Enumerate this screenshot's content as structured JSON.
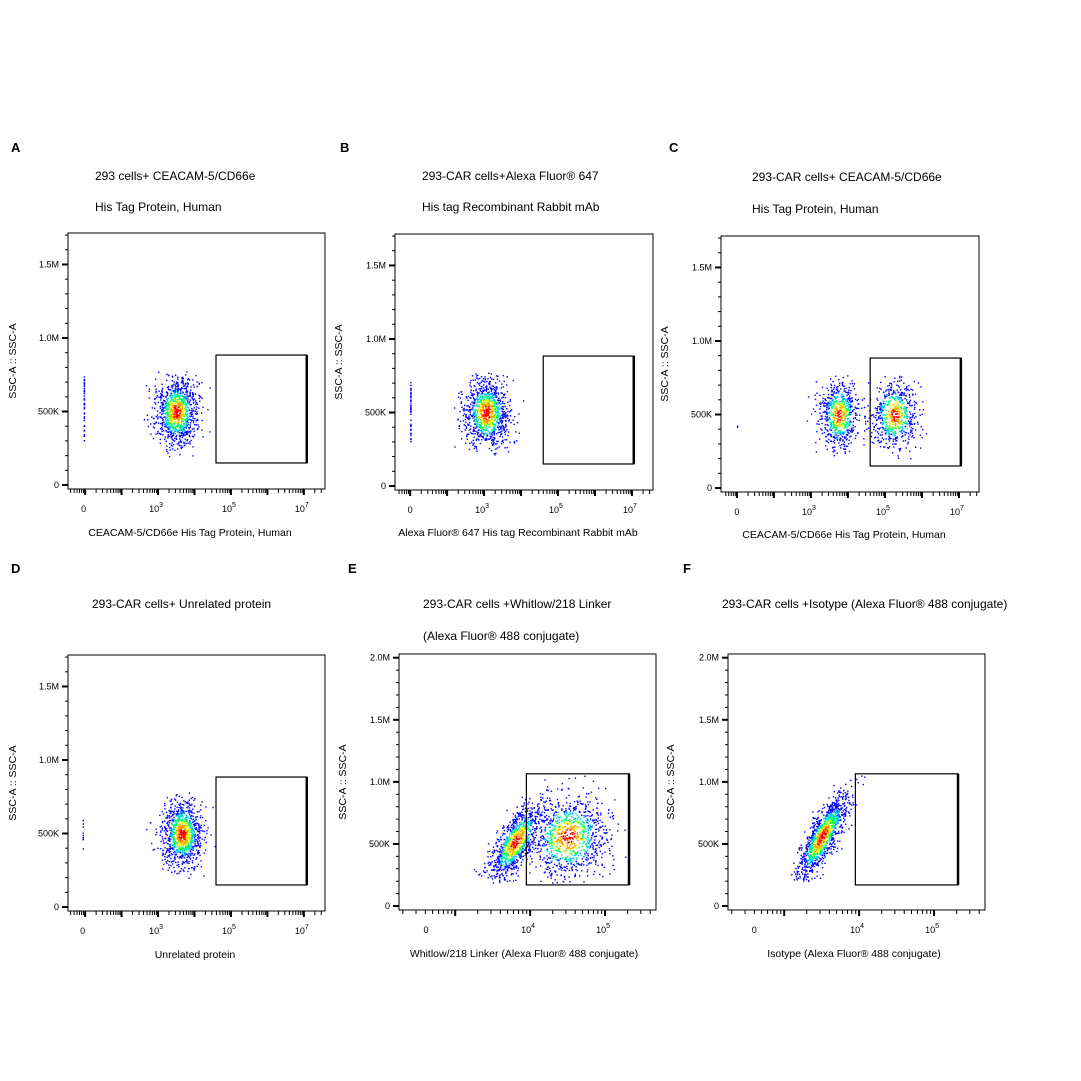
{
  "chart_data": [
    {
      "panel": "A",
      "type": "scatter",
      "title_lines": [
        "293 cells+ CEACAM-5/CD66e",
        "His Tag Protein, Human"
      ],
      "xlabel": "CEACAM-5/CD66e His Tag Protein, Human",
      "ylabel": "SSC-A :: SSC-A",
      "xlim_log10": [
        0.53,
        7.58
      ],
      "ylim": [
        -27000,
        1714000
      ],
      "x_ticks": [
        {
          "label": "0",
          "log10": 0.96
        },
        {
          "base": "10",
          "exp": "3",
          "log10": 3
        },
        {
          "base": "10",
          "exp": "5",
          "log10": 5
        },
        {
          "base": "10",
          "exp": "7",
          "log10": 7
        }
      ],
      "y_ticks": [
        {
          "label": "0",
          "value": 0
        },
        {
          "label": "500K",
          "value": 500000
        },
        {
          "label": "1.0M",
          "value": 1000000
        },
        {
          "label": "1.5M",
          "value": 1500000
        }
      ],
      "gate": {
        "x_log10": [
          4.59,
          7.08
        ],
        "y": [
          150000,
          884000
        ]
      },
      "y_clip": [
        220000,
        770000
      ],
      "populations": [
        {
          "x_log10": 3.5,
          "x_sd": 0.28,
          "y": 500000,
          "y_sd": 115000,
          "corr": 0,
          "n": 1100
        }
      ],
      "zero_column": {
        "y": [
          300000,
          740000
        ],
        "n": 45
      }
    },
    {
      "panel": "B",
      "type": "scatter",
      "title_lines": [
        "293-CAR cells+Alexa Fluor® 647",
        "His tag Recombinant Rabbit mAb"
      ],
      "xlabel": "Alexa Fluor® 647  His tag Recombinant Rabbit mAb",
      "ylabel": "SSC-A :: SSC-A",
      "xlim_log10": [
        0.59,
        7.57
      ],
      "ylim": [
        -27000,
        1714000
      ],
      "x_ticks": [
        {
          "label": "0",
          "log10": 1.0
        },
        {
          "base": "10",
          "exp": "3",
          "log10": 3
        },
        {
          "base": "10",
          "exp": "5",
          "log10": 5
        },
        {
          "base": "10",
          "exp": "7",
          "log10": 7
        }
      ],
      "y_ticks": [
        {
          "label": "0",
          "value": 0
        },
        {
          "label": "500K",
          "value": 500000
        },
        {
          "label": "1.0M",
          "value": 1000000
        },
        {
          "label": "1.5M",
          "value": 1500000
        }
      ],
      "gate": {
        "x_log10": [
          4.6,
          7.05
        ],
        "y": [
          150000,
          884000
        ]
      },
      "y_clip": [
        220000,
        770000
      ],
      "populations": [
        {
          "x_log10": 3.05,
          "x_sd": 0.3,
          "y": 500000,
          "y_sd": 115000,
          "corr": 0,
          "n": 1100
        }
      ],
      "zero_column": {
        "y": [
          300000,
          740000
        ],
        "n": 45
      }
    },
    {
      "panel": "C",
      "type": "scatter",
      "title_lines": [
        "293-CAR cells+ CEACAM-5/CD66e",
        "His Tag Protein, Human"
      ],
      "xlabel": "CEACAM-5/CD66e His Tag Protein, Human",
      "ylabel": "SSC-A :: SSC-A",
      "xlim_log10": [
        0.57,
        7.54
      ],
      "ylim": [
        -27000,
        1714000
      ],
      "x_ticks": [
        {
          "label": "0",
          "log10": 1.0
        },
        {
          "base": "10",
          "exp": "3",
          "log10": 3
        },
        {
          "base": "10",
          "exp": "5",
          "log10": 5
        },
        {
          "base": "10",
          "exp": "7",
          "log10": 7
        }
      ],
      "y_ticks": [
        {
          "label": "0",
          "value": 0
        },
        {
          "label": "500K",
          "value": 500000
        },
        {
          "label": "1.0M",
          "value": 1000000
        },
        {
          "label": "1.5M",
          "value": 1500000
        }
      ],
      "gate": {
        "x_log10": [
          4.6,
          7.05
        ],
        "y": [
          150000,
          884000
        ]
      },
      "y_clip": [
        220000,
        770000
      ],
      "populations": [
        {
          "x_log10": 3.75,
          "x_sd": 0.25,
          "y": 500000,
          "y_sd": 115000,
          "corr": 0,
          "n": 700
        },
        {
          "x_log10": 5.25,
          "x_sd": 0.3,
          "y": 500000,
          "y_sd": 115000,
          "corr": 0,
          "n": 650
        }
      ],
      "zero_column": {
        "y": [
          400000,
          520000
        ],
        "n": 2
      }
    },
    {
      "panel": "D",
      "type": "scatter",
      "title_lines": [
        "293-CAR cells+ Unrelated protein"
      ],
      "xlabel": "Unrelated protein",
      "ylabel": "SSC-A :: SSC-A",
      "xlim_log10": [
        0.53,
        7.58
      ],
      "ylim": [
        -27000,
        1714000
      ],
      "x_ticks": [
        {
          "label": "0",
          "log10": 0.93
        },
        {
          "base": "10",
          "exp": "3",
          "log10": 3
        },
        {
          "base": "10",
          "exp": "5",
          "log10": 5
        },
        {
          "base": "10",
          "exp": "7",
          "log10": 7
        }
      ],
      "y_ticks": [
        {
          "label": "0",
          "value": 0
        },
        {
          "label": "500K",
          "value": 500000
        },
        {
          "label": "1.0M",
          "value": 1000000
        },
        {
          "label": "1.5M",
          "value": 1500000
        }
      ],
      "gate": {
        "x_log10": [
          4.59,
          7.08
        ],
        "y": [
          150000,
          884000
        ]
      },
      "y_clip": [
        220000,
        770000
      ],
      "populations": [
        {
          "x_log10": 3.65,
          "x_sd": 0.27,
          "y": 500000,
          "y_sd": 115000,
          "corr": 0,
          "n": 1100
        }
      ],
      "zero_column": {
        "y": [
          380000,
          600000
        ],
        "n": 10
      }
    },
    {
      "panel": "E",
      "type": "scatter",
      "title_lines": [
        "293-CAR cells +Whitlow/218 Linker",
        "(Alexa Fluor® 488 conjugate)"
      ],
      "xlabel": "Whitlow/218 Linker (Alexa Fluor® 488 conjugate)",
      "ylabel": "SSC-A :: SSC-A",
      "xlim_log10": [
        2.25,
        5.68
      ],
      "ylim": [
        -32000,
        2030000
      ],
      "x_ticks": [
        {
          "label": "0",
          "log10": 2.61
        },
        {
          "base": "10",
          "exp": "4",
          "log10": 4
        },
        {
          "base": "10",
          "exp": "5",
          "log10": 5
        }
      ],
      "y_ticks": [
        {
          "label": "0",
          "value": 0
        },
        {
          "label": "500K",
          "value": 500000
        },
        {
          "label": "1.0M",
          "value": 1000000
        },
        {
          "label": "1.5M",
          "value": 1500000
        },
        {
          "label": "2.0M",
          "value": 2000000
        }
      ],
      "gate": {
        "x_log10": [
          3.95,
          5.32
        ],
        "y": [
          170000,
          1065000
        ]
      },
      "y_clip": [
        200000,
        1050000
      ],
      "populations": [
        {
          "x_log10": 3.8,
          "x_sd": 0.17,
          "y": 520000,
          "y_sd": 150000,
          "corr": 0.7,
          "n": 1000
        },
        {
          "x_log10": 4.5,
          "x_sd": 0.26,
          "y": 560000,
          "y_sd": 170000,
          "corr": 0.1,
          "n": 1000
        }
      ],
      "zero_column": {
        "y": [
          0,
          0
        ],
        "n": 0
      }
    },
    {
      "panel": "F",
      "type": "scatter",
      "title_lines": [
        "293-CAR cells +Isotype (Alexa Fluor® 488 conjugate)"
      ],
      "xlabel": "Isotype (Alexa Fluor® 488 conjugate)",
      "ylabel": "SSC-A :: SSC-A",
      "xlim_log10": [
        2.25,
        5.68
      ],
      "ylim": [
        -32000,
        2030000
      ],
      "x_ticks": [
        {
          "label": "0",
          "log10": 2.6
        },
        {
          "base": "10",
          "exp": "4",
          "log10": 4
        },
        {
          "base": "10",
          "exp": "5",
          "log10": 5
        }
      ],
      "y_ticks": [
        {
          "label": "0",
          "value": 0
        },
        {
          "label": "500K",
          "value": 500000
        },
        {
          "label": "1.0M",
          "value": 1000000
        },
        {
          "label": "1.5M",
          "value": 1500000
        },
        {
          "label": "2.0M",
          "value": 2000000
        }
      ],
      "gate": {
        "x_log10": [
          3.95,
          5.32
        ],
        "y": [
          170000,
          1065000
        ]
      },
      "y_clip": [
        200000,
        1050000
      ],
      "populations": [
        {
          "x_log10": 3.5,
          "x_sd": 0.17,
          "y": 560000,
          "y_sd": 170000,
          "corr": 0.8,
          "n": 1200
        }
      ],
      "zero_column": {
        "y": [
          0,
          0
        ],
        "n": 0
      }
    }
  ],
  "colors": {
    "density_high": "#ff0000",
    "density_mid_high": "#ff9900",
    "density_mid": "#ffff00",
    "density_low_mid": "#00ff66",
    "density_cyan": "#00ccff",
    "density_low": "#0000ff"
  }
}
